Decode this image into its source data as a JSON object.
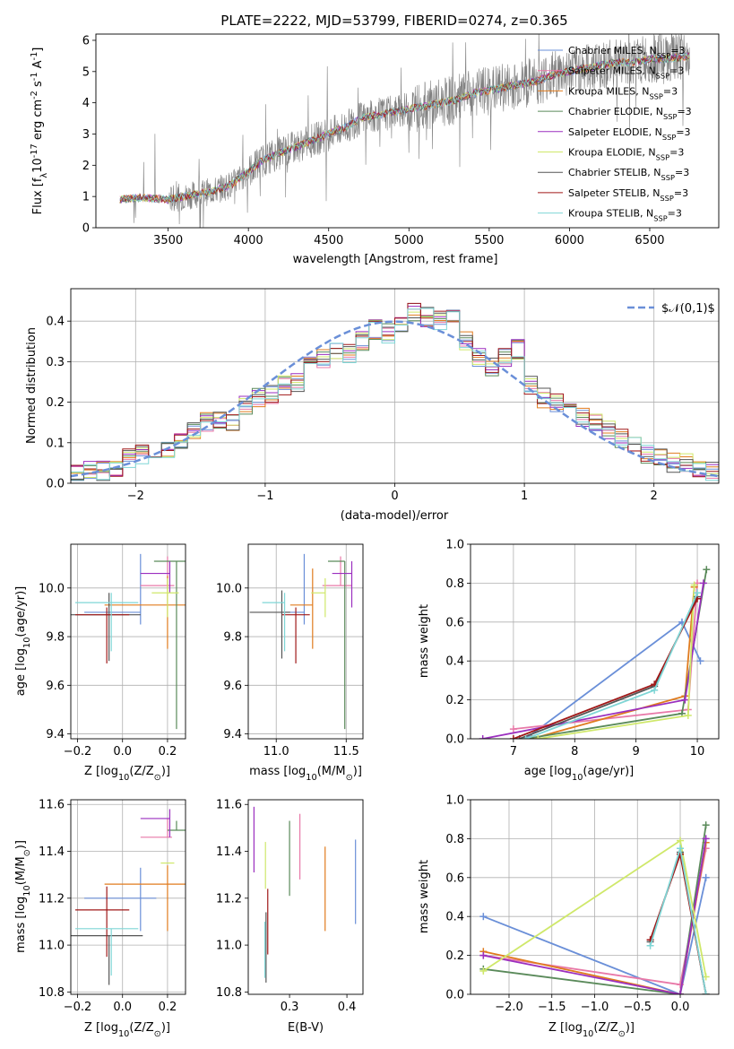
{
  "figure_title": "PLATE=2222, MJD=53799, FIBERID=0274, z=0.365",
  "colors": {
    "chabrier_miles": "#6a8fd8",
    "salpeter_miles": "#e879a8",
    "kroupa_miles": "#e07b1e",
    "chabrier_elodie": "#5a8a5a",
    "salpeter_elodie": "#9b2fbf",
    "kroupa_elodie": "#cfe86a",
    "chabrier_stelib": "#555555",
    "salpeter_stelib": "#a01818",
    "kroupa_stelib": "#7fd6d6",
    "data": "#808080",
    "grid": "#b0b0b0"
  },
  "chart_data": [
    {
      "id": "spectrum",
      "type": "line",
      "title": "PLATE=2222, MJD=53799, FIBERID=0274, z=0.365",
      "xlabel": "wavelength [Angstrom, rest frame]",
      "ylabel": "Flux [f$_λ$10$^{-17}$ erg cm$^{-2}$ s$^{-1}$ A$^{-1}$]",
      "xlim": [
        3050,
        6930
      ],
      "ylim": [
        0,
        6.2
      ],
      "xticks": [
        3500,
        4000,
        4500,
        5000,
        5500,
        6000,
        6500
      ],
      "yticks": [
        0,
        1,
        2,
        3,
        4,
        5,
        6
      ],
      "grid": false,
      "legend": "upper right",
      "continuum": {
        "x": [
          3200,
          3300,
          3400,
          3500,
          3600,
          3700,
          3800,
          3900,
          4000,
          4100,
          4200,
          4300,
          4400,
          4500,
          4600,
          4700,
          4800,
          4900,
          5000,
          5100,
          5200,
          5300,
          5400,
          5500,
          5600,
          5700,
          5800,
          5900,
          6000,
          6100,
          6200,
          6300,
          6400,
          6500,
          6600,
          6750
        ],
        "y": [
          0.9,
          0.95,
          0.95,
          0.9,
          1.0,
          1.1,
          1.2,
          1.4,
          1.8,
          2.2,
          2.4,
          2.6,
          2.8,
          3.0,
          3.2,
          3.5,
          3.6,
          3.7,
          3.8,
          3.9,
          4.0,
          4.1,
          4.3,
          4.4,
          4.5,
          4.6,
          4.7,
          4.9,
          5.0,
          5.1,
          5.2,
          5.3,
          5.3,
          5.4,
          5.4,
          5.5
        ]
      },
      "series": [
        {
          "key": "chabrier_miles",
          "name": "Chabrier MILES, N$_{SSP}$=3"
        },
        {
          "key": "salpeter_miles",
          "name": "Salpeter MILES, N$_{SSP}$=3"
        },
        {
          "key": "kroupa_miles",
          "name": "Kroupa MILES, N$_{SSP}$=3"
        },
        {
          "key": "chabrier_elodie",
          "name": "Chabrier ELODIE, N$_{SSP}$=3"
        },
        {
          "key": "salpeter_elodie",
          "name": "Salpeter ELODIE, N$_{SSP}$=3"
        },
        {
          "key": "kroupa_elodie",
          "name": "Kroupa ELODIE, N$_{SSP}$=3"
        },
        {
          "key": "chabrier_stelib",
          "name": "Chabrier STELIB, N$_{SSP}$=3"
        },
        {
          "key": "salpeter_stelib",
          "name": "Salpeter STELIB, N$_{SSP}$=3"
        },
        {
          "key": "kroupa_stelib",
          "name": "Kroupa STELIB, N$_{SSP}$=3"
        }
      ]
    },
    {
      "id": "residuals",
      "type": "line",
      "xlabel": "(data-model)/error",
      "ylabel": "Normed distribution",
      "xlim": [
        -2.5,
        2.5
      ],
      "ylim": [
        0,
        0.48
      ],
      "xticks": [
        -2,
        -1,
        0,
        1,
        2
      ],
      "yticks": [
        0.0,
        0.1,
        0.2,
        0.3,
        0.4
      ],
      "grid": true,
      "legend": "upper right",
      "gaussian_label": "$\\mathcal{N}(0,1)$",
      "bins": [
        -2.5,
        -2.4,
        -2.3,
        -2.2,
        -2.1,
        -2.0,
        -1.9,
        -1.8,
        -1.7,
        -1.6,
        -1.5,
        -1.4,
        -1.3,
        -1.2,
        -1.1,
        -1.0,
        -0.9,
        -0.8,
        -0.7,
        -0.6,
        -0.5,
        -0.4,
        -0.3,
        -0.2,
        -0.1,
        0.0,
        0.1,
        0.2,
        0.3,
        0.4,
        0.5,
        0.6,
        0.7,
        0.8,
        0.9,
        1.0,
        1.1,
        1.2,
        1.3,
        1.4,
        1.5,
        1.6,
        1.7,
        1.8,
        1.9,
        2.0,
        2.1,
        2.2,
        2.3,
        2.4
      ],
      "hist_base": [
        0.02,
        0.03,
        0.03,
        0.04,
        0.06,
        0.07,
        0.05,
        0.08,
        0.11,
        0.13,
        0.15,
        0.16,
        0.15,
        0.19,
        0.21,
        0.22,
        0.24,
        0.25,
        0.29,
        0.31,
        0.33,
        0.32,
        0.35,
        0.38,
        0.37,
        0.39,
        0.42,
        0.41,
        0.4,
        0.41,
        0.35,
        0.31,
        0.29,
        0.31,
        0.33,
        0.24,
        0.21,
        0.2,
        0.19,
        0.16,
        0.15,
        0.13,
        0.11,
        0.1,
        0.07,
        0.06,
        0.05,
        0.05,
        0.04,
        0.03
      ]
    },
    {
      "id": "age_vs_Z",
      "type": "scatter",
      "xlabel": "Z [log$_{10}$(Z/Z$_⊙$)]",
      "ylabel": "age  [log$_{10}$(age/yr)]",
      "xlim": [
        -0.23,
        0.28
      ],
      "ylim": [
        9.38,
        10.18
      ],
      "xticks": [
        -0.2,
        0.0,
        0.2
      ],
      "yticks": [
        9.4,
        9.6,
        9.8,
        10.0
      ],
      "grid": true,
      "points": [
        {
          "key": "chabrier_miles",
          "x": 0.08,
          "y": 9.9,
          "xerr": [
            0.25,
            0.0
          ],
          "yerr": [
            0.05,
            0.24
          ]
        },
        {
          "key": "salpeter_miles",
          "x": 0.2,
          "y": 10.01,
          "xerr": [
            0.12,
            0.03
          ],
          "yerr": [
            0.0,
            0.12
          ]
        },
        {
          "key": "kroupa_miles",
          "x": 0.2,
          "y": 9.93,
          "xerr": [
            0.28,
            0.08
          ],
          "yerr": [
            0.18,
            0.12
          ]
        },
        {
          "key": "chabrier_elodie",
          "x": 0.24,
          "y": 10.11,
          "xerr": [
            0.1,
            0.04
          ],
          "yerr": [
            0.69,
            0.0
          ]
        },
        {
          "key": "salpeter_elodie",
          "x": 0.21,
          "y": 10.06,
          "xerr": [
            0.13,
            0.0
          ],
          "yerr": [
            0.08,
            0.05
          ]
        },
        {
          "key": "kroupa_elodie",
          "x": 0.2,
          "y": 9.98,
          "xerr": [
            0.07,
            0.05
          ],
          "yerr": [
            0.1,
            0.06
          ]
        },
        {
          "key": "chabrier_stelib",
          "x": -0.06,
          "y": 9.89,
          "xerr": [
            0.17,
            0.14
          ],
          "yerr": [
            0.19,
            0.09
          ]
        },
        {
          "key": "salpeter_stelib",
          "x": -0.07,
          "y": 9.89,
          "xerr": [
            0.14,
            0.1
          ],
          "yerr": [
            0.2,
            0.03
          ]
        },
        {
          "key": "kroupa_stelib",
          "x": -0.05,
          "y": 9.94,
          "xerr": [
            0.16,
            0.12
          ],
          "yerr": [
            0.2,
            0.04
          ]
        }
      ]
    },
    {
      "id": "age_vs_mass",
      "type": "scatter",
      "xlabel": "mass [log$_{10}$(M/M$_⊙$)]",
      "ylabel": "",
      "xlim": [
        10.8,
        11.62
      ],
      "ylim": [
        9.38,
        10.18
      ],
      "xticks": [
        11.0,
        11.5
      ],
      "yticks": [
        9.4,
        9.6,
        9.8,
        10.0
      ],
      "grid": true,
      "points": [
        {
          "key": "chabrier_miles",
          "x": 11.2,
          "y": 9.9,
          "xerr": [
            0.14,
            0.0
          ],
          "yerr": [
            0.05,
            0.24
          ]
        },
        {
          "key": "salpeter_miles",
          "x": 11.46,
          "y": 10.01,
          "xerr": [
            0.13,
            0.08
          ],
          "yerr": [
            0.0,
            0.12
          ]
        },
        {
          "key": "kroupa_miles",
          "x": 11.26,
          "y": 9.93,
          "xerr": [
            0.16,
            0.0
          ],
          "yerr": [
            0.18,
            0.15
          ]
        },
        {
          "key": "chabrier_elodie",
          "x": 11.49,
          "y": 10.11,
          "xerr": [
            0.12,
            0.0
          ],
          "yerr": [
            0.69,
            0.0
          ]
        },
        {
          "key": "salpeter_elodie",
          "x": 11.54,
          "y": 10.06,
          "xerr": [
            0.14,
            0.0
          ],
          "yerr": [
            0.14,
            0.05
          ]
        },
        {
          "key": "kroupa_elodie",
          "x": 11.35,
          "y": 9.98,
          "xerr": [
            0.1,
            0.0
          ],
          "yerr": [
            0.1,
            0.06
          ]
        },
        {
          "key": "chabrier_stelib",
          "x": 11.04,
          "y": 9.9,
          "xerr": [
            0.23,
            0.06
          ],
          "yerr": [
            0.19,
            0.09
          ]
        },
        {
          "key": "salpeter_stelib",
          "x": 11.14,
          "y": 9.89,
          "xerr": [
            0.1,
            0.1
          ],
          "yerr": [
            0.2,
            0.03
          ]
        },
        {
          "key": "kroupa_stelib",
          "x": 11.06,
          "y": 9.94,
          "xerr": [
            0.16,
            0.0
          ],
          "yerr": [
            0.2,
            0.04
          ]
        }
      ]
    },
    {
      "id": "weight_vs_age",
      "type": "line",
      "xlabel": "age  [log$_{10}$(age/yr)]",
      "ylabel": "mass weight",
      "xlim": [
        6.3,
        10.35
      ],
      "ylim": [
        0,
        1.0
      ],
      "xticks": [
        7,
        8,
        9,
        10
      ],
      "yticks": [
        0.0,
        0.2,
        0.4,
        0.6,
        0.8,
        1.0
      ],
      "grid": true,
      "series": [
        {
          "key": "chabrier_miles",
          "x": [
            7.2,
            9.75,
            10.05
          ],
          "y": [
            0.0,
            0.6,
            0.4
          ]
        },
        {
          "key": "salpeter_miles",
          "x": [
            7.0,
            9.85,
            10.0
          ],
          "y": [
            0.05,
            0.15,
            0.8
          ]
        },
        {
          "key": "kroupa_miles",
          "x": [
            7.3,
            9.8,
            9.95
          ],
          "y": [
            0.0,
            0.22,
            0.78
          ]
        },
        {
          "key": "chabrier_elodie",
          "x": [
            7.2,
            9.75,
            10.15
          ],
          "y": [
            0.0,
            0.13,
            0.87
          ]
        },
        {
          "key": "salpeter_elodie",
          "x": [
            6.5,
            9.8,
            10.1
          ],
          "y": [
            0.0,
            0.2,
            0.8
          ]
        },
        {
          "key": "kroupa_elodie",
          "x": [
            7.4,
            9.85,
            9.95
          ],
          "y": [
            0.0,
            0.12,
            0.79
          ]
        },
        {
          "key": "chabrier_stelib",
          "x": [
            7.1,
            9.3,
            10.0
          ],
          "y": [
            0.0,
            0.27,
            0.73
          ]
        },
        {
          "key": "salpeter_stelib",
          "x": [
            7.0,
            9.3,
            10.0
          ],
          "y": [
            0.0,
            0.28,
            0.72
          ]
        },
        {
          "key": "kroupa_stelib",
          "x": [
            7.2,
            9.3,
            10.0
          ],
          "y": [
            0.0,
            0.25,
            0.75
          ]
        }
      ]
    },
    {
      "id": "mass_vs_Z",
      "type": "scatter",
      "xlabel": "Z [log$_{10}$(Z/Z$_⊙$)]",
      "ylabel": "mass [log$_{10}$(M/M$_⊙$)]",
      "xlim": [
        -0.23,
        0.28
      ],
      "ylim": [
        10.79,
        11.62
      ],
      "xticks": [
        -0.2,
        0.0,
        0.2
      ],
      "yticks": [
        10.8,
        11.0,
        11.2,
        11.4,
        11.6
      ],
      "grid": true,
      "points": [
        {
          "key": "chabrier_miles",
          "x": 0.08,
          "y": 11.2,
          "xerr": [
            0.25,
            0.07
          ],
          "yerr": [
            0.14,
            0.13
          ]
        },
        {
          "key": "salpeter_miles",
          "x": 0.2,
          "y": 11.46,
          "xerr": [
            0.12,
            0.02
          ],
          "yerr": [
            0.0,
            0.08
          ]
        },
        {
          "key": "kroupa_miles",
          "x": 0.2,
          "y": 11.26,
          "xerr": [
            0.28,
            0.08
          ],
          "yerr": [
            0.2,
            0.08
          ]
        },
        {
          "key": "chabrier_elodie",
          "x": 0.24,
          "y": 11.49,
          "xerr": [
            0.04,
            0.04
          ],
          "yerr": [
            0.0,
            0.04
          ]
        },
        {
          "key": "salpeter_elodie",
          "x": 0.21,
          "y": 11.54,
          "xerr": [
            0.13,
            0.0
          ],
          "yerr": [
            0.08,
            0.04
          ]
        },
        {
          "key": "kroupa_elodie",
          "x": 0.2,
          "y": 11.35,
          "xerr": [
            0.03,
            0.03
          ],
          "yerr": [
            0.0,
            0.0
          ]
        },
        {
          "key": "chabrier_stelib",
          "x": -0.06,
          "y": 11.04,
          "xerr": [
            0.17,
            0.15
          ],
          "yerr": [
            0.21,
            0.0
          ]
        },
        {
          "key": "salpeter_stelib",
          "x": -0.07,
          "y": 11.15,
          "xerr": [
            0.14,
            0.1
          ],
          "yerr": [
            0.2,
            0.1
          ]
        },
        {
          "key": "kroupa_stelib",
          "x": -0.05,
          "y": 11.07,
          "xerr": [
            0.16,
            0.12
          ],
          "yerr": [
            0.2,
            0.0
          ]
        }
      ]
    },
    {
      "id": "mass_vs_EBV",
      "type": "scatter",
      "xlabel": "E(B-V)",
      "ylabel": "",
      "xlim": [
        0.228,
        0.428
      ],
      "ylim": [
        10.79,
        11.62
      ],
      "xticks": [
        0.3,
        0.4
      ],
      "yticks": [
        10.8,
        11.0,
        11.2,
        11.4,
        11.6
      ],
      "grid": false,
      "points": [
        {
          "key": "chabrier_miles",
          "x": 0.415,
          "y": 11.27,
          "yerr": [
            0.18,
            0.18
          ]
        },
        {
          "key": "salpeter_miles",
          "x": 0.318,
          "y": 11.42,
          "yerr": [
            0.14,
            0.14
          ]
        },
        {
          "key": "kroupa_miles",
          "x": 0.362,
          "y": 11.24,
          "yerr": [
            0.18,
            0.18
          ]
        },
        {
          "key": "chabrier_elodie",
          "x": 0.3,
          "y": 11.37,
          "yerr": [
            0.16,
            0.16
          ]
        },
        {
          "key": "salpeter_elodie",
          "x": 0.238,
          "y": 11.45,
          "yerr": [
            0.14,
            0.14
          ]
        },
        {
          "key": "kroupa_elodie",
          "x": 0.258,
          "y": 11.34,
          "yerr": [
            0.1,
            0.1
          ]
        },
        {
          "key": "chabrier_stelib",
          "x": 0.259,
          "y": 10.99,
          "yerr": [
            0.15,
            0.15
          ]
        },
        {
          "key": "salpeter_stelib",
          "x": 0.262,
          "y": 11.1,
          "yerr": [
            0.14,
            0.14
          ]
        },
        {
          "key": "kroupa_stelib",
          "x": 0.257,
          "y": 10.98,
          "yerr": [
            0.12,
            0.12
          ]
        }
      ]
    },
    {
      "id": "weight_vs_Z",
      "type": "line",
      "xlabel": "Z [log$_{10}$(Z/Z$_⊙$)]",
      "ylabel": "mass weight",
      "xlim": [
        -2.45,
        0.45
      ],
      "ylim": [
        0,
        1.0
      ],
      "xticks": [
        -2.0,
        -1.5,
        -1.0,
        -0.5,
        0.0
      ],
      "yticks": [
        0.0,
        0.2,
        0.4,
        0.6,
        0.8,
        1.0
      ],
      "grid": true,
      "series": [
        {
          "key": "chabrier_miles",
          "x": [
            -2.3,
            0.0,
            0.3
          ],
          "y": [
            0.4,
            0.0,
            0.6
          ]
        },
        {
          "key": "salpeter_miles",
          "x": [
            -2.3,
            0.0,
            0.3
          ],
          "y": [
            0.2,
            0.05,
            0.75
          ]
        },
        {
          "key": "kroupa_miles",
          "x": [
            -2.3,
            0.0,
            0.3
          ],
          "y": [
            0.22,
            0.0,
            0.78
          ]
        },
        {
          "key": "chabrier_elodie",
          "x": [
            -2.3,
            0.0,
            0.3
          ],
          "y": [
            0.13,
            0.0,
            0.87
          ]
        },
        {
          "key": "salpeter_elodie",
          "x": [
            -2.3,
            0.0,
            0.3
          ],
          "y": [
            0.2,
            0.0,
            0.8
          ]
        },
        {
          "key": "kroupa_elodie",
          "x": [
            -2.3,
            0.0,
            0.3
          ],
          "y": [
            0.12,
            0.79,
            0.09
          ]
        },
        {
          "key": "chabrier_stelib",
          "x": [
            -0.35,
            0.0,
            0.3
          ],
          "y": [
            0.27,
            0.73,
            0.0
          ]
        },
        {
          "key": "salpeter_stelib",
          "x": [
            -0.35,
            0.0,
            0.3
          ],
          "y": [
            0.28,
            0.72,
            0.0
          ]
        },
        {
          "key": "kroupa_stelib",
          "x": [
            -0.35,
            0.0,
            0.3
          ],
          "y": [
            0.25,
            0.75,
            0.0
          ]
        }
      ]
    }
  ]
}
